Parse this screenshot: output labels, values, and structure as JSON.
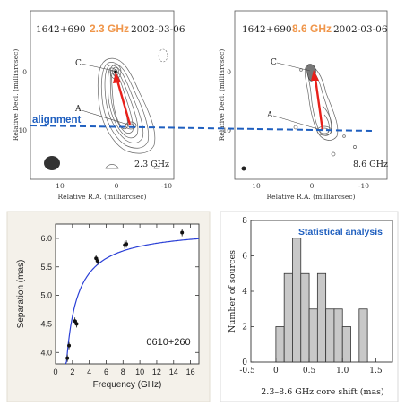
{
  "colors": {
    "accent_orange": "#f0964a",
    "arrow_red": "#e8201a",
    "alignment_blue": "#1f5fbf",
    "curve_blue": "#2a3fd6",
    "panel_bg": "#f4f1ea",
    "hist_fill": "#c8c8c8"
  },
  "panels": {
    "map_23": {
      "source": "1642+690",
      "freq_title": "2.3 GHz",
      "date": "2002-03-06",
      "freq_label": "2.3 GHz",
      "ylabel": "Relative Decl. (milliarcsec)",
      "xlabel": "Relative R.A. (milliarcsec)",
      "label_c": "C",
      "label_a": "A",
      "x_ticks": [
        "10",
        "0",
        "-10"
      ],
      "y_ticks": [
        "0",
        "-10"
      ]
    },
    "map_86": {
      "source": "1642+690",
      "freq_title": "8.6 GHz",
      "date": "2002-03-06",
      "freq_label": "8.6 GHz",
      "ylabel": "Relative Decl. (milliarcsec)",
      "xlabel": "Relative R.A. (milliarcsec)",
      "label_c": "C",
      "label_a": "A",
      "x_ticks": [
        "10",
        "0",
        "-10"
      ],
      "y_ticks": [
        "0",
        "-10"
      ]
    },
    "alignment_label": "alignment",
    "hist_annotation": "Statistical analysis",
    "fit_label": "0610+260"
  },
  "chart_data": [
    {
      "type": "scatter",
      "xlabel": "Frequency (GHz)",
      "ylabel": "Separation (mas)",
      "xlim": [
        0,
        17
      ],
      "ylim": [
        3.8,
        6.25
      ],
      "x_ticks": [
        0,
        2,
        4,
        6,
        8,
        10,
        12,
        14,
        16
      ],
      "y_ticks": [
        4.0,
        4.5,
        5.0,
        5.5,
        6.0
      ],
      "points": [
        {
          "x": 1.4,
          "y": 3.9
        },
        {
          "x": 1.6,
          "y": 4.12
        },
        {
          "x": 2.3,
          "y": 4.55
        },
        {
          "x": 2.5,
          "y": 4.5
        },
        {
          "x": 4.8,
          "y": 5.65
        },
        {
          "x": 5.0,
          "y": 5.6
        },
        {
          "x": 8.2,
          "y": 5.88
        },
        {
          "x": 8.4,
          "y": 5.9
        },
        {
          "x": 15.0,
          "y": 6.1
        }
      ]
    },
    {
      "type": "bar",
      "xlabel": "2.3–8.6 GHz core shift (mas)",
      "ylabel": "Number of sources",
      "xlim": [
        -0.375,
        1.75
      ],
      "ylim": [
        0,
        8
      ],
      "x_ticks": [
        "-0.5",
        "0",
        "0.5",
        "1.0",
        "1.5"
      ],
      "y_ticks": [
        "0",
        "2",
        "4",
        "6",
        "8"
      ],
      "bin_width": 0.125,
      "bins": [
        {
          "x": -0.125,
          "value": 0
        },
        {
          "x": 0.0,
          "value": 2
        },
        {
          "x": 0.125,
          "value": 5
        },
        {
          "x": 0.25,
          "value": 7
        },
        {
          "x": 0.375,
          "value": 5
        },
        {
          "x": 0.5,
          "value": 3
        },
        {
          "x": 0.625,
          "value": 5
        },
        {
          "x": 0.75,
          "value": 3
        },
        {
          "x": 0.875,
          "value": 3
        },
        {
          "x": 1.0,
          "value": 2
        },
        {
          "x": 1.125,
          "value": 0
        },
        {
          "x": 1.25,
          "value": 3
        },
        {
          "x": 1.375,
          "value": 0
        }
      ]
    }
  ]
}
